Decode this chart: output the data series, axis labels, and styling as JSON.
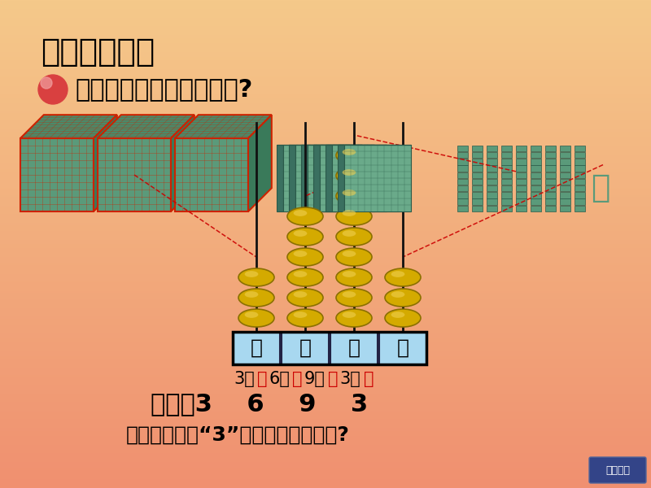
{
  "title": "二、你问我说",
  "question": "三千六百九十三有多大呢?",
  "bg_color_top": "#F5C98A",
  "bg_color_bottom": "#F09070",
  "title_fontsize": 28,
  "question_fontsize": 22,
  "abacus_labels": [
    "千",
    "百",
    "十",
    "个"
  ],
  "abacus_beads": [
    3,
    6,
    9,
    3
  ],
  "think_text": "想一想：两个“3”表示的意思相同吗?",
  "dashed_line_color": "#CC0000",
  "cube_face_color": "#5A9A7A",
  "cube_edge_color": "#CC2200",
  "slab_face_color": "#4A8A6A",
  "slab_edge_color": "#2A5A4A",
  "stick_face_color": "#5A9A7A",
  "stick_edge_color": "#2A5A4A",
  "bead_color": "#D4AA00",
  "bead_edge": "#8B7000",
  "box_fill": "#A8D8F0",
  "place_parts": [
    {
      "text": "3个",
      "color": "black"
    },
    {
      "text": "千",
      "color": "#CC0000"
    },
    {
      "text": "6个",
      "color": "black"
    },
    {
      "text": "百",
      "color": "#CC0000"
    },
    {
      "text": "9个",
      "color": "black"
    },
    {
      "text": "十",
      "color": "#CC0000"
    },
    {
      "text": "3个",
      "color": "black"
    },
    {
      "text": "一",
      "color": "#CC0000"
    }
  ]
}
